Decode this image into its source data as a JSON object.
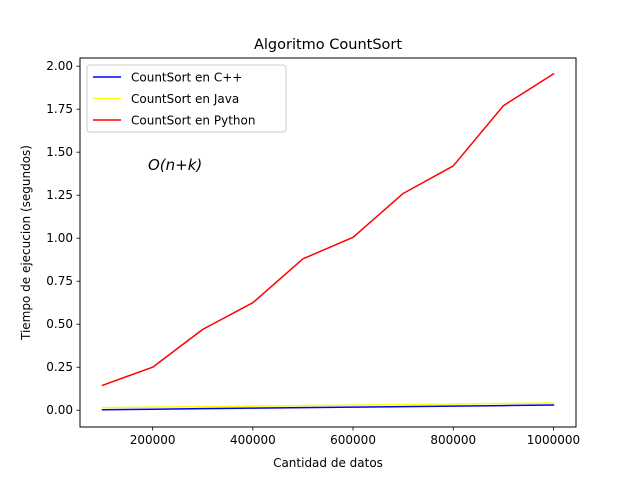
{
  "chart_data": {
    "type": "line",
    "title": "Algoritmo CountSort",
    "xlabel": "Cantidad de datos",
    "ylabel": "Tiempo de ejecucion (segundos)",
    "xlim": [
      55000,
      1045000
    ],
    "ylim": [
      -0.0975,
      2.0475
    ],
    "x_ticks": [
      200000,
      400000,
      600000,
      800000,
      1000000
    ],
    "x_tick_labels": [
      "200000",
      "400000",
      "600000",
      "800000",
      "1000000"
    ],
    "y_ticks": [
      0.0,
      0.25,
      0.5,
      0.75,
      1.0,
      1.25,
      1.5,
      1.75,
      2.0
    ],
    "y_tick_labels": [
      "0.00",
      "0.25",
      "0.50",
      "0.75",
      "1.00",
      "1.25",
      "1.50",
      "1.75",
      "2.00"
    ],
    "annotation": "O(n+k)",
    "legend_position": "top-left",
    "grid": false,
    "x": [
      100000,
      200000,
      300000,
      400000,
      500000,
      600000,
      700000,
      800000,
      900000,
      1000000
    ],
    "series": [
      {
        "name": "CountSort en C++",
        "color": "#0000ff",
        "values": [
          0.003,
          0.006,
          0.009,
          0.012,
          0.015,
          0.018,
          0.021,
          0.024,
          0.027,
          0.03
        ]
      },
      {
        "name": "CountSort en  Java",
        "color": "#ffff00",
        "values": [
          0.015,
          0.018,
          0.021,
          0.024,
          0.027,
          0.03,
          0.033,
          0.036,
          0.039,
          0.042
        ]
      },
      {
        "name": "CountSort en  Python",
        "color": "#ff0000",
        "values": [
          0.145,
          0.25,
          0.47,
          0.625,
          0.88,
          1.005,
          1.26,
          1.42,
          1.77,
          1.955
        ]
      }
    ]
  }
}
